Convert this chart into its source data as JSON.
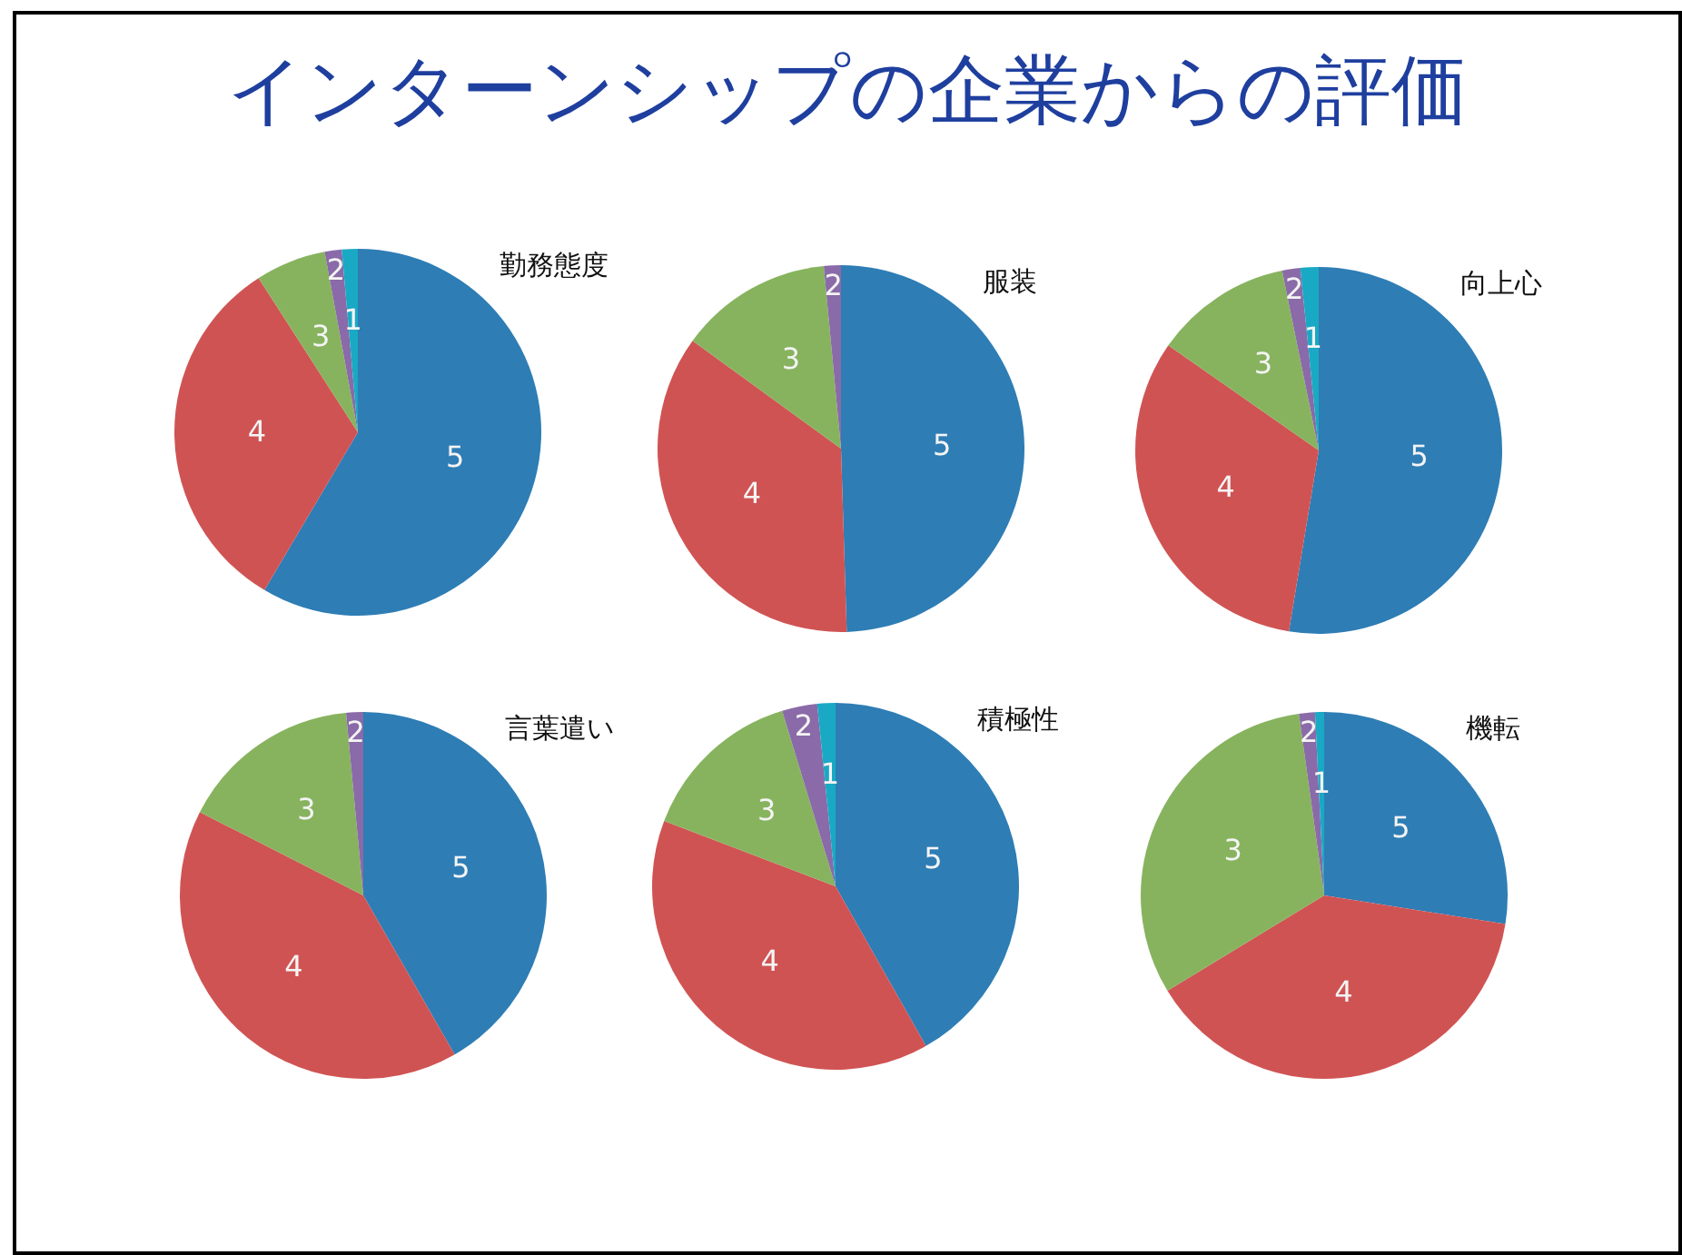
{
  "chart_data": [
    {
      "type": "other",
      "title": "インターンシップの企業からの評価"
    },
    {
      "type": "pie",
      "title": "勤務態度",
      "categories": [
        "5",
        "4",
        "3",
        "2",
        "1"
      ],
      "values": [
        58.5,
        32.4,
        6.2,
        1.5,
        1.4
      ],
      "colors": [
        "#2e7db5",
        "#d05353",
        "#87b35e",
        "#8a6aa8",
        "#1aa9c4"
      ],
      "legend": false
    },
    {
      "type": "pie",
      "title": "服装",
      "categories": [
        "5",
        "4",
        "3",
        "2"
      ],
      "values": [
        49.5,
        35.5,
        13.5,
        1.5
      ],
      "colors": [
        "#2e7db5",
        "#d05353",
        "#87b35e",
        "#8a6aa8"
      ],
      "legend": false
    },
    {
      "type": "pie",
      "title": "向上心",
      "categories": [
        "5",
        "4",
        "3",
        "2",
        "1"
      ],
      "values": [
        52.6,
        32.1,
        12.1,
        1.6,
        1.6
      ],
      "colors": [
        "#2e7db5",
        "#d05353",
        "#87b35e",
        "#8a6aa8",
        "#1aa9c4"
      ],
      "legend": false
    },
    {
      "type": "pie",
      "title": "言葉遣い",
      "categories": [
        "5",
        "4",
        "3",
        "2"
      ],
      "values": [
        41.7,
        40.8,
        16.0,
        1.5
      ],
      "colors": [
        "#2e7db5",
        "#d05353",
        "#87b35e",
        "#8a6aa8"
      ],
      "legend": false
    },
    {
      "type": "pie",
      "title": "積極性",
      "categories": [
        "5",
        "4",
        "3",
        "2",
        "1"
      ],
      "values": [
        41.8,
        39.0,
        14.5,
        3.1,
        1.6
      ],
      "colors": [
        "#2e7db5",
        "#d05353",
        "#87b35e",
        "#8a6aa8",
        "#1aa9c4"
      ],
      "legend": false
    },
    {
      "type": "pie",
      "title": "機転",
      "categories": [
        "5",
        "4",
        "3",
        "2",
        "1"
      ],
      "values": [
        27.5,
        38.8,
        31.5,
        1.4,
        0.8
      ],
      "colors": [
        "#2e7db5",
        "#d05353",
        "#87b35e",
        "#8a6aa8",
        "#1aa9c4"
      ],
      "legend": false
    }
  ]
}
